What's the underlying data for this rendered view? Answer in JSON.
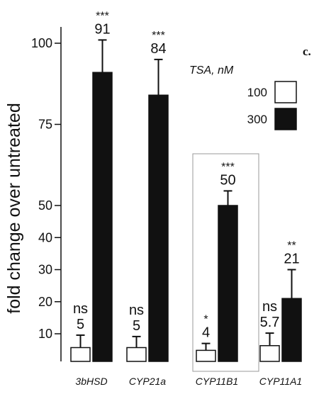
{
  "chart_data": {
    "type": "bar",
    "panel_label": "c.",
    "ylabel": "fold change over untreated",
    "yticks": [
      10,
      20,
      30,
      40,
      50,
      75,
      100
    ],
    "ylim": [
      0,
      105
    ],
    "categories": [
      "3bHSD",
      "CYP21a",
      "CYP11B1",
      "CYP11A1"
    ],
    "legend": {
      "title": "TSA, nM",
      "placement": "top-right"
    },
    "series": [
      {
        "name": "100",
        "color": "#ffffff",
        "values": [
          5,
          5,
          4,
          5.7
        ],
        "errors": [
          4.5,
          4,
          2.5,
          4.5
        ],
        "value_labels": [
          "5",
          "5",
          "4",
          "5.7"
        ],
        "significance": [
          "ns",
          "ns",
          "*",
          "ns"
        ]
      },
      {
        "name": "300",
        "color": "#111111",
        "values": [
          91,
          84,
          50,
          21
        ],
        "errors": [
          10,
          11,
          4.5,
          9
        ],
        "value_labels": [
          "91",
          "84",
          "50",
          "21"
        ],
        "significance": [
          "***",
          "***",
          "***",
          "**"
        ]
      }
    ],
    "highlight_category": "CYP11B1"
  }
}
